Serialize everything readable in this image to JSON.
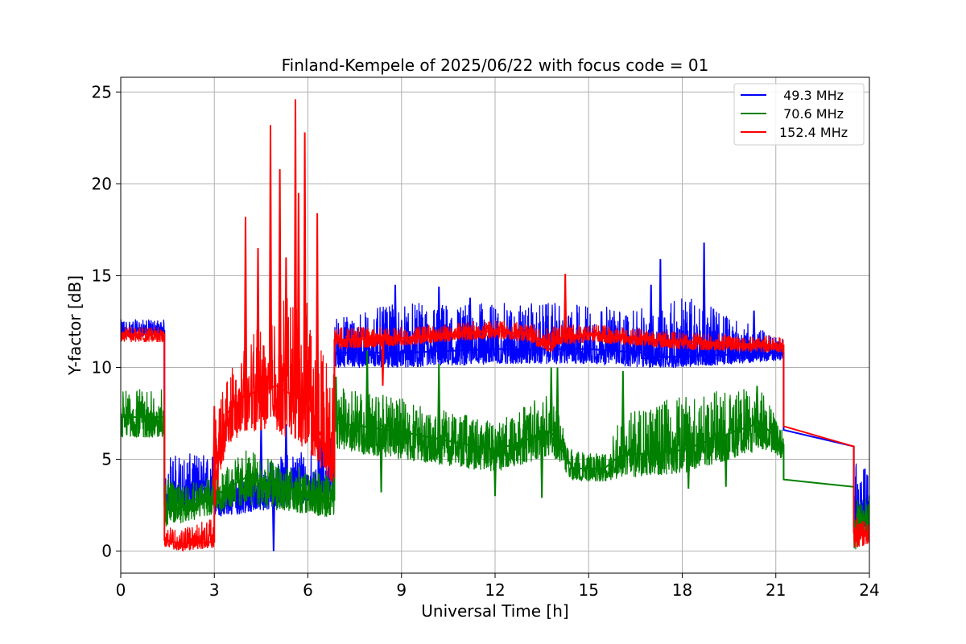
{
  "chart_data": {
    "type": "line",
    "title": "Finland-Kempele of 2025/06/22 with focus code = 01",
    "xlabel": "Universal Time [h]",
    "ylabel": "Y-factor [dB]",
    "xlim": [
      0,
      24
    ],
    "ylim": [
      -1.2,
      25.8
    ],
    "xticks": [
      0,
      3,
      6,
      9,
      12,
      15,
      18,
      21,
      24
    ],
    "xtick_labels": [
      "0",
      "3",
      "6",
      "9",
      "12",
      "15",
      "18",
      "21",
      "24"
    ],
    "yticks": [
      0,
      5,
      10,
      15,
      20,
      25
    ],
    "ytick_labels": [
      "0",
      "5",
      "10",
      "15",
      "20",
      "25"
    ],
    "grid": true,
    "legend_position": "top-right",
    "series": [
      {
        "name": " 49.3 MHz",
        "color": "#0000ff",
        "x": [
          0,
          1.4,
          1.4,
          3.0,
          3.0,
          6.85,
          6.85,
          9,
          12,
          15,
          16.7,
          16.7,
          18,
          21.25,
          21.25,
          23.5,
          23.5,
          24
        ],
        "y": [
          12.0,
          12.0,
          3.0,
          3.5,
          2.5,
          4.0,
          10.8,
          10.8,
          11.0,
          11.0,
          10.8,
          10.5,
          10.6,
          10.8,
          6.6,
          5.7,
          2.5,
          2.5
        ],
        "lower": [
          11.7,
          11.7,
          2.0,
          2.5,
          1.8,
          2.8,
          10.0,
          10.0,
          10.2,
          10.2,
          10.0,
          10.0,
          10.0,
          10.4,
          6.6,
          5.7,
          0.8,
          1.5
        ],
        "upper": [
          12.6,
          12.6,
          5.3,
          5.3,
          3.5,
          6.5,
          12.8,
          13.5,
          13.5,
          13.5,
          13.0,
          13.5,
          14.0,
          11.5,
          6.6,
          5.7,
          6.1,
          4.0
        ],
        "spikes": [
          [
            8.8,
            14.5
          ],
          [
            10.2,
            14.4
          ],
          [
            11.2,
            13.8
          ],
          [
            17.3,
            15.9
          ],
          [
            17.0,
            14.5
          ],
          [
            18.7,
            16.8
          ],
          [
            19.0,
            13.2
          ],
          [
            20.3,
            13.1
          ],
          [
            4.9,
            0.0
          ],
          [
            4.5,
            6.8
          ],
          [
            5.3,
            6.9
          ]
        ]
      },
      {
        "name": " 70.6 MHz",
        "color": "#008000",
        "x": [
          0,
          1.4,
          1.4,
          3.0,
          4.0,
          6.85,
          6.85,
          9,
          12,
          13.8,
          14.5,
          15.5,
          16.0,
          18,
          20.5,
          21.25,
          21.25,
          23.5,
          23.5,
          24
        ],
        "y": [
          7.3,
          7.3,
          2.5,
          3.0,
          4.0,
          2.8,
          7.0,
          6.5,
          5.5,
          6.5,
          4.5,
          4.5,
          5.2,
          5.5,
          7.0,
          5.8,
          3.9,
          3.5,
          1.5,
          2.0
        ],
        "lower": [
          6.2,
          6.2,
          1.3,
          2.0,
          2.5,
          1.8,
          5.5,
          5.0,
          4.3,
          5.2,
          3.8,
          3.8,
          4.0,
          4.2,
          5.5,
          5.0,
          3.9,
          3.5,
          0.0,
          1.0
        ],
        "upper": [
          8.8,
          8.8,
          4.0,
          4.0,
          5.5,
          4.0,
          9.0,
          8.3,
          7.0,
          8.8,
          5.5,
          5.5,
          7.5,
          8.5,
          9.0,
          6.5,
          3.9,
          3.5,
          2.8,
          3.1
        ],
        "spikes": [
          [
            6.9,
            9.5
          ],
          [
            7.9,
            10.9
          ],
          [
            8.35,
            3.2
          ],
          [
            10.2,
            10.2
          ],
          [
            13.8,
            10.0
          ],
          [
            14.0,
            10.0
          ],
          [
            12.0,
            3.0
          ],
          [
            13.5,
            2.9
          ],
          [
            16.1,
            9.8
          ],
          [
            18.2,
            3.4
          ],
          [
            19.4,
            3.5
          ],
          [
            20.4,
            9.0
          ]
        ]
      },
      {
        "name": "152.4 MHz",
        "color": "#ff0000",
        "x": [
          0,
          1.4,
          1.4,
          2.0,
          3.0,
          3.0,
          3.4,
          4.0,
          5.0,
          6.0,
          6.85,
          6.85,
          9,
          12,
          13.0,
          13.8,
          14.0,
          15,
          18,
          21.25,
          21.25,
          23.5,
          23.5,
          24
        ],
        "y": [
          11.8,
          11.8,
          0.6,
          0.4,
          0.5,
          3.5,
          7.5,
          8.5,
          9.0,
          8.0,
          4.5,
          11.5,
          11.6,
          12.0,
          11.8,
          11.3,
          11.6,
          11.8,
          11.4,
          11.2,
          6.8,
          5.7,
          1.0,
          1.0
        ],
        "lower": [
          11.4,
          11.4,
          0.2,
          0.0,
          0.2,
          2.2,
          5.8,
          6.5,
          6.5,
          5.5,
          3.5,
          11.0,
          11.2,
          11.6,
          11.4,
          10.8,
          11.2,
          11.4,
          11.0,
          10.8,
          6.8,
          5.7,
          0.2,
          0.3
        ],
        "upper": [
          12.2,
          12.2,
          1.3,
          1.2,
          2.0,
          7.5,
          10.0,
          11.0,
          14.0,
          13.5,
          10.0,
          12.2,
          12.2,
          12.6,
          12.4,
          12.1,
          12.4,
          12.4,
          11.9,
          11.7,
          6.8,
          5.7,
          1.8,
          1.8
        ],
        "spikes": [
          [
            4.0,
            18.2
          ],
          [
            4.8,
            23.2
          ],
          [
            5.1,
            20.8
          ],
          [
            5.6,
            24.6
          ],
          [
            5.9,
            22.8
          ],
          [
            5.7,
            19.5
          ],
          [
            6.3,
            18.4
          ],
          [
            5.3,
            16.0
          ],
          [
            4.4,
            16.5
          ],
          [
            14.25,
            15.1
          ],
          [
            8.4,
            9.0
          ],
          [
            3.0,
            7.9
          ]
        ]
      }
    ]
  }
}
